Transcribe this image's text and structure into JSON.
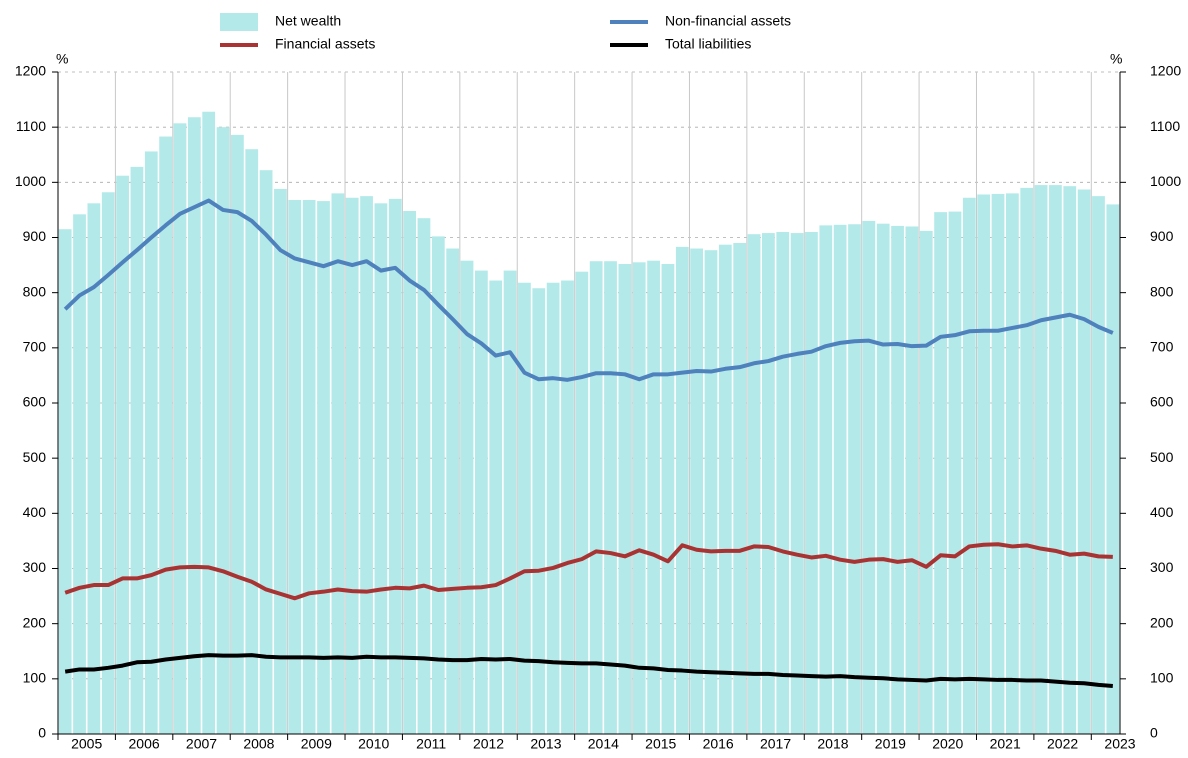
{
  "chart_data": {
    "type": "bar",
    "y_unit": "%",
    "x": [
      2005.125,
      2005.375,
      2005.625,
      2005.875,
      2006.125,
      2006.375,
      2006.625,
      2006.875,
      2007.125,
      2007.375,
      2007.625,
      2007.875,
      2008.125,
      2008.375,
      2008.625,
      2008.875,
      2009.125,
      2009.375,
      2009.625,
      2009.875,
      2010.125,
      2010.375,
      2010.625,
      2010.875,
      2011.125,
      2011.375,
      2011.625,
      2011.875,
      2012.125,
      2012.375,
      2012.625,
      2012.875,
      2013.125,
      2013.375,
      2013.625,
      2013.875,
      2014.125,
      2014.375,
      2014.625,
      2014.875,
      2015.125,
      2015.375,
      2015.625,
      2015.875,
      2016.125,
      2016.375,
      2016.625,
      2016.875,
      2017.125,
      2017.375,
      2017.625,
      2017.875,
      2018.125,
      2018.375,
      2018.625,
      2018.875,
      2019.125,
      2019.375,
      2019.625,
      2019.875,
      2020.125,
      2020.375,
      2020.625,
      2020.875,
      2021.125,
      2021.375,
      2021.625,
      2021.875,
      2022.125,
      2022.375,
      2022.625,
      2022.875,
      2023.125,
      2023.375
    ],
    "series": [
      {
        "name": "Net wealth",
        "type": "bar",
        "color": "#b3e9e9",
        "values": [
          915,
          942,
          962,
          982,
          1012,
          1028,
          1056,
          1083,
          1107,
          1118,
          1128,
          1100,
          1086,
          1060,
          1022,
          988,
          968,
          968,
          966,
          980,
          972,
          975,
          962,
          970,
          948,
          935,
          902,
          880,
          858,
          840,
          822,
          840,
          818,
          808,
          818,
          822,
          838,
          857,
          857,
          852,
          855,
          858,
          852,
          883,
          880,
          877,
          887,
          890,
          906,
          908,
          910,
          908,
          910,
          922,
          923,
          924,
          930,
          925,
          921,
          920,
          912,
          946,
          947,
          972,
          978,
          979,
          980,
          990,
          995,
          995,
          993,
          987,
          975,
          960
        ]
      },
      {
        "name": "Non-financial assets",
        "type": "line",
        "color": "#4f81bd",
        "values": [
          770,
          795,
          810,
          832,
          855,
          877,
          900,
          922,
          943,
          955,
          967,
          950,
          946,
          930,
          905,
          877,
          862,
          855,
          848,
          857,
          850,
          857,
          840,
          845,
          822,
          805,
          778,
          752,
          725,
          708,
          686,
          692,
          655,
          643,
          645,
          642,
          647,
          654,
          654,
          652,
          643,
          652,
          652,
          655,
          658,
          657,
          662,
          665,
          672,
          676,
          684,
          689,
          693,
          703,
          709,
          712,
          713,
          706,
          707,
          703,
          704,
          720,
          723,
          730,
          731,
          731,
          736,
          741,
          750,
          755,
          760,
          752,
          738,
          727
        ]
      },
      {
        "name": "Financial assets",
        "type": "line",
        "color": "#a93333",
        "values": [
          256,
          265,
          270,
          270,
          282,
          282,
          288,
          298,
          302,
          303,
          302,
          295,
          285,
          276,
          262,
          254,
          246,
          255,
          258,
          262,
          259,
          258,
          262,
          265,
          264,
          269,
          261,
          263,
          265,
          266,
          270,
          282,
          295,
          296,
          301,
          310,
          317,
          331,
          328,
          322,
          333,
          325,
          313,
          342,
          334,
          331,
          332,
          332,
          340,
          339,
          331,
          325,
          320,
          323,
          316,
          312,
          316,
          317,
          312,
          315,
          303,
          324,
          322,
          340,
          343,
          344,
          340,
          342,
          336,
          332,
          325,
          327,
          322,
          321
        ]
      },
      {
        "name": "Total liabilities",
        "type": "line",
        "color": "#000000",
        "values": [
          113,
          117,
          117,
          120,
          124,
          130,
          131,
          135,
          138,
          141,
          143,
          142,
          142,
          143,
          140,
          139,
          139,
          139,
          138,
          139,
          138,
          140,
          139,
          139,
          138,
          137,
          135,
          134,
          134,
          136,
          135,
          136,
          133,
          132,
          130,
          129,
          128,
          128,
          126,
          124,
          120,
          119,
          116,
          115,
          113,
          112,
          111,
          110,
          109,
          109,
          107,
          106,
          105,
          104,
          105,
          103,
          102,
          101,
          99,
          98,
          97,
          100,
          99,
          100,
          99,
          98,
          98,
          97,
          97,
          95,
          93,
          92,
          89,
          87
        ]
      }
    ],
    "xlim": [
      2005,
      2023.5
    ],
    "xticks": [
      2005,
      2006,
      2007,
      2008,
      2009,
      2010,
      2011,
      2012,
      2013,
      2014,
      2015,
      2016,
      2017,
      2018,
      2019,
      2020,
      2021,
      2022,
      2023
    ],
    "ylim": [
      0,
      1200
    ],
    "yticks": [
      0,
      100,
      200,
      300,
      400,
      500,
      600,
      700,
      800,
      900,
      1000,
      1100,
      1200
    ],
    "grid": true
  }
}
